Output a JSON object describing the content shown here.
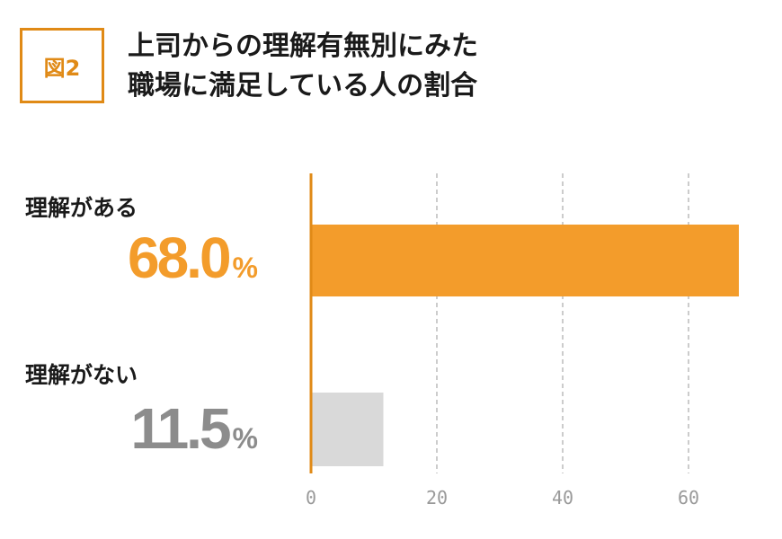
{
  "figure": {
    "badge": "図2",
    "title_lines": [
      "上司からの理解有無別にみた",
      "職場に満足している人の割合"
    ]
  },
  "chart_data": {
    "type": "bar",
    "orientation": "horizontal",
    "categories": [
      "理解がある",
      "理解がない"
    ],
    "values": [
      68.0,
      11.5
    ],
    "value_labels": [
      "68.0",
      "11.5"
    ],
    "unit": "%",
    "xlim": [
      0,
      68
    ],
    "xticks": [
      0,
      20,
      40,
      60
    ],
    "grid": true,
    "colors": [
      "#f39c2b",
      "#d9d9d9"
    ],
    "label_colors": [
      "#f39c2b",
      "#8c8c8c"
    ],
    "axis_color": "#e08a16"
  }
}
